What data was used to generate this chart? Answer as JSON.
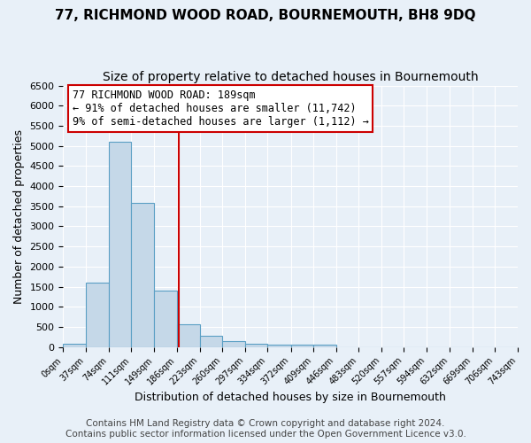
{
  "title1": "77, RICHMOND WOOD ROAD, BOURNEMOUTH, BH8 9DQ",
  "title2": "Size of property relative to detached houses in Bournemouth",
  "xlabel": "Distribution of detached houses by size in Bournemouth",
  "ylabel": "Number of detached properties",
  "bin_edges": [
    0,
    37,
    74,
    111,
    149,
    186,
    223,
    260,
    297,
    334,
    372,
    409,
    446,
    483,
    520,
    557,
    594,
    632,
    669,
    706,
    743
  ],
  "bar_heights": [
    75,
    1600,
    5100,
    3580,
    1400,
    575,
    290,
    145,
    90,
    65,
    65,
    50,
    0,
    0,
    0,
    0,
    0,
    0,
    0,
    0
  ],
  "bar_color": "#c5d8e8",
  "bar_edge_color": "#5a9fc4",
  "property_size": 189,
  "vline_color": "#cc0000",
  "annotation_line1": "77 RICHMOND WOOD ROAD: 189sqm",
  "annotation_line2": "← 91% of detached houses are smaller (11,742)",
  "annotation_line3": "9% of semi-detached houses are larger (1,112) →",
  "annotation_box_color": "#ffffff",
  "annotation_box_edge_color": "#cc0000",
  "ylim": [
    0,
    6500
  ],
  "yticks": [
    0,
    500,
    1000,
    1500,
    2000,
    2500,
    3000,
    3500,
    4000,
    4500,
    5000,
    5500,
    6000,
    6500
  ],
  "footnote1": "Contains HM Land Registry data © Crown copyright and database right 2024.",
  "footnote2": "Contains public sector information licensed under the Open Government Licence v3.0.",
  "background_color": "#e8f0f8",
  "title1_fontsize": 11,
  "title2_fontsize": 10,
  "xlabel_fontsize": 9,
  "ylabel_fontsize": 9,
  "tick_fontsize": 7,
  "ytick_fontsize": 8,
  "annotation_fontsize": 8.5,
  "footnote_fontsize": 7.5
}
